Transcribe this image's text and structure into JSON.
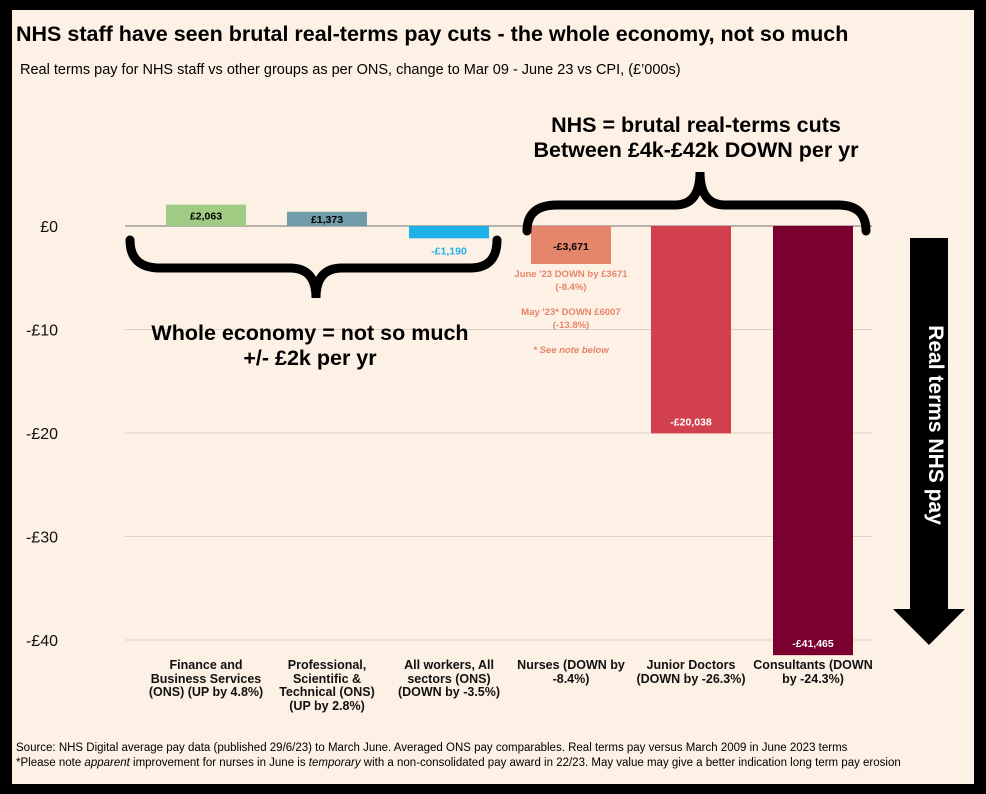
{
  "title": "NHS staff have seen brutal real-terms pay cuts - the whole economy, not so much",
  "subtitle": "Real terms pay for NHS staff vs other groups as per ONS, change to Mar 09 - June 23 vs CPI, (£’000s)",
  "annotations": {
    "nhs_line1": "NHS = brutal real-terms cuts",
    "nhs_line2": "Between £4k-£42k DOWN per yr",
    "economy_line1": "Whole economy = not so much",
    "economy_line2": "+/- £2k per yr",
    "arrow_label": "Real terms NHS pay",
    "nurse_note_1a": "June '23 DOWN by £3671",
    "nurse_note_1b": "(-8.4%)",
    "nurse_note_2a": "May '23* DOWN £6007",
    "nurse_note_2b": "(-13.8%)",
    "nurse_note_3": "* See note below"
  },
  "footnotes": {
    "line1": "Source: NHS Digital average pay data (published 29/6/23) to March June. Averaged ONS pay comparables. Real terms pay versus March 2009 in June 2023 terms",
    "line2_a": "*Please note ",
    "line2_b": "apparent",
    "line2_c": " improvement for nurses in June is ",
    "line2_d": "temporary",
    "line2_e": " with a non-consolidated pay award in 22/23. May value may give a better indication long term pay erosion"
  },
  "chart_data": {
    "type": "bar",
    "categories": [
      "Finance and Business Services (ONS) (UP by 4.8%)",
      "Professional, Scientific & Technical (ONS) (UP by 2.8%)",
      "All workers, All sectors (ONS) (DOWN by -3.5%)",
      "Nurses (DOWN by -8.4%)",
      "Junior Doctors (DOWN by -26.3%)",
      "Consultants (DOWN by -24.3%)"
    ],
    "values": [
      2.063,
      1.373,
      -1.19,
      -3.671,
      -20.038,
      -41.465
    ],
    "data_labels": [
      "£2,063",
      "£1,373",
      "-£1,190",
      "-£3,671",
      "-£20,038",
      "-£41,465"
    ],
    "colors": [
      "#9fcb82",
      "#6f9ca8",
      "#1fb2ea",
      "#e5856c",
      "#d1404c",
      "#7a0030"
    ],
    "label_colors": [
      "#000000",
      "#000000",
      "#1fb2ea",
      "#000000",
      "#ffffff",
      "#ffffff"
    ],
    "ylim": [
      -40,
      0
    ],
    "yticks": [
      0,
      -10,
      -20,
      -30,
      -40
    ],
    "ytick_labels": [
      "£0",
      "-£10",
      "-£20",
      "-£30",
      "-£40"
    ],
    "grid": true
  }
}
